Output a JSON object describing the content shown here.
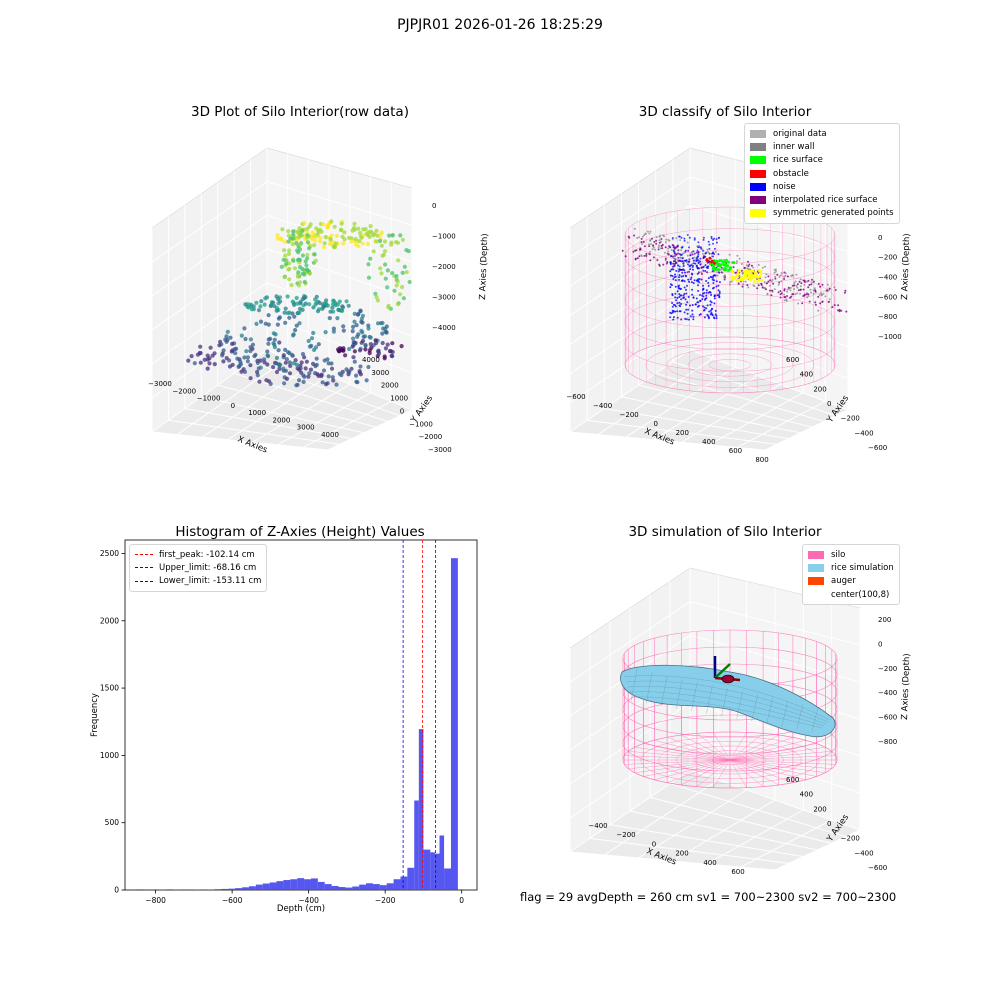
{
  "figure": {
    "suptitle": "PJPJR01 2026-01-26 18:25:29"
  },
  "footer_text": "flag = 29  avgDepth = 260 cm  sv1 = 700~2300  sv2 = 700~2300",
  "chart_data": [
    {
      "type": "scatter",
      "title": "3D Plot of Silo Interior(row data)",
      "xlabel": "X Axies",
      "ylabel": "Y Axies",
      "zlabel": "Z Axies (Depth)",
      "x_ticks": [
        "−3000",
        "−2000",
        "−1000",
        "0",
        "1000",
        "2000",
        "3000",
        "4000"
      ],
      "y_ticks": [
        "−3000",
        "−2000",
        "−1000",
        "0",
        "1000",
        "2000",
        "3000",
        "4000"
      ],
      "z_ticks": [
        "−4000",
        "−3000",
        "−2000",
        "−1000",
        "0"
      ],
      "colormap": "viridis",
      "grid": true
    },
    {
      "type": "scatter",
      "title": "3D classify of Silo Interior",
      "xlabel": "X Axies",
      "ylabel": "Y Axies",
      "zlabel": "Z Axies (Depth)",
      "x_ticks": [
        "−600",
        "−400",
        "−200",
        "0",
        "200",
        "400",
        "600",
        "800"
      ],
      "y_ticks": [
        "−600",
        "−400",
        "−200",
        "0",
        "200",
        "400",
        "600"
      ],
      "z_ticks": [
        "−1000",
        "−800",
        "−600",
        "−400",
        "−200",
        "0",
        "200"
      ],
      "legend": [
        {
          "label": "original data",
          "color": "#b0b0b0"
        },
        {
          "label": "inner wall",
          "color": "#808080"
        },
        {
          "label": "rice surface",
          "color": "#00ff00"
        },
        {
          "label": "obstacle",
          "color": "#ff0000"
        },
        {
          "label": "noise",
          "color": "#0000ff"
        },
        {
          "label": "interpolated rice surface",
          "color": "#800080"
        },
        {
          "label": "symmetric generated points",
          "color": "#ffff00"
        }
      ],
      "legend_position": "top-right",
      "grid": true
    },
    {
      "type": "bar",
      "title": "Histogram of Z-Axies (Height) Values",
      "xlabel": "Depth (cm)",
      "ylabel": "Frequency",
      "xlim": [
        -880,
        40
      ],
      "ylim": [
        0,
        2600
      ],
      "x_ticks": [
        -800,
        -600,
        -400,
        -200,
        0
      ],
      "x_tick_labels": [
        "−800",
        "−600",
        "−400",
        "−200",
        "0"
      ],
      "y_ticks": [
        0,
        500,
        1000,
        1500,
        2000,
        2500
      ],
      "bar_color": "#4444ee",
      "bins": [
        {
          "x0": -850,
          "x1": -832,
          "v": 5
        },
        {
          "x0": -790,
          "x1": -772,
          "v": 3
        },
        {
          "x0": -772,
          "x1": -754,
          "v": 5
        },
        {
          "x0": -754,
          "x1": -736,
          "v": 4
        },
        {
          "x0": -700,
          "x1": -682,
          "v": 3
        },
        {
          "x0": -664,
          "x1": -646,
          "v": 4
        },
        {
          "x0": -646,
          "x1": -628,
          "v": 6
        },
        {
          "x0": -628,
          "x1": -610,
          "v": 8
        },
        {
          "x0": -610,
          "x1": -592,
          "v": 10
        },
        {
          "x0": -592,
          "x1": -574,
          "v": 14
        },
        {
          "x0": -574,
          "x1": -556,
          "v": 20
        },
        {
          "x0": -556,
          "x1": -538,
          "v": 28
        },
        {
          "x0": -538,
          "x1": -520,
          "v": 40
        },
        {
          "x0": -520,
          "x1": -502,
          "v": 48
        },
        {
          "x0": -502,
          "x1": -484,
          "v": 56
        },
        {
          "x0": -484,
          "x1": -466,
          "v": 66
        },
        {
          "x0": -466,
          "x1": -448,
          "v": 74
        },
        {
          "x0": -448,
          "x1": -430,
          "v": 80
        },
        {
          "x0": -430,
          "x1": -412,
          "v": 88
        },
        {
          "x0": -412,
          "x1": -394,
          "v": 80
        },
        {
          "x0": -394,
          "x1": -376,
          "v": 86
        },
        {
          "x0": -376,
          "x1": -358,
          "v": 60
        },
        {
          "x0": -358,
          "x1": -340,
          "v": 44
        },
        {
          "x0": -340,
          "x1": -322,
          "v": 30
        },
        {
          "x0": -322,
          "x1": -304,
          "v": 22
        },
        {
          "x0": -304,
          "x1": -286,
          "v": 18
        },
        {
          "x0": -286,
          "x1": -268,
          "v": 26
        },
        {
          "x0": -268,
          "x1": -250,
          "v": 40
        },
        {
          "x0": -250,
          "x1": -232,
          "v": 50
        },
        {
          "x0": -232,
          "x1": -214,
          "v": 44
        },
        {
          "x0": -214,
          "x1": -196,
          "v": 36
        },
        {
          "x0": -196,
          "x1": -178,
          "v": 50
        },
        {
          "x0": -178,
          "x1": -160,
          "v": 80
        },
        {
          "x0": -160,
          "x1": -142,
          "v": 100
        },
        {
          "x0": -142,
          "x1": -124,
          "v": 165
        },
        {
          "x0": -124,
          "x1": -112,
          "v": 665
        },
        {
          "x0": -112,
          "x1": -100,
          "v": 1195
        },
        {
          "x0": -100,
          "x1": -82,
          "v": 300
        },
        {
          "x0": -82,
          "x1": -70,
          "v": 280
        },
        {
          "x0": -70,
          "x1": -58,
          "v": 270
        },
        {
          "x0": -58,
          "x1": -46,
          "v": 405
        },
        {
          "x0": -46,
          "x1": -28,
          "v": 160
        },
        {
          "x0": -28,
          "x1": -10,
          "v": 2465
        }
      ],
      "vlines": [
        {
          "label": "first_peak: -102.14 cm",
          "x": -102.14,
          "color": "#ff0000"
        },
        {
          "label": "Upper_limit: -68.16 cm",
          "x": -68.16,
          "color": "#0000ff"
        },
        {
          "label": "Lower_limit: -153.11 cm",
          "x": -153.11,
          "color": "#0000ff"
        }
      ],
      "legend_position": "top-left",
      "grid": false
    },
    {
      "type": "surface",
      "title": "3D simulation of Silo Interior",
      "xlabel": "X Axies",
      "ylabel": "Y Axies",
      "zlabel": "Z Axies (Depth)",
      "x_ticks": [
        "−400",
        "−200",
        "0",
        "200",
        "400",
        "600"
      ],
      "y_ticks": [
        "−600",
        "−400",
        "−200",
        "0",
        "200",
        "400",
        "600"
      ],
      "z_ticks": [
        "−800",
        "−600",
        "−400",
        "−200",
        "0",
        "200"
      ],
      "legend": [
        {
          "label": "silo",
          "color": "#ff69b4"
        },
        {
          "label": "rice simulation",
          "color": "#87ceeb"
        },
        {
          "label": "auger",
          "color": "#ff4500"
        },
        {
          "label": "center(100,8)",
          "color": ""
        }
      ],
      "legend_position": "top-right",
      "grid": true
    }
  ]
}
